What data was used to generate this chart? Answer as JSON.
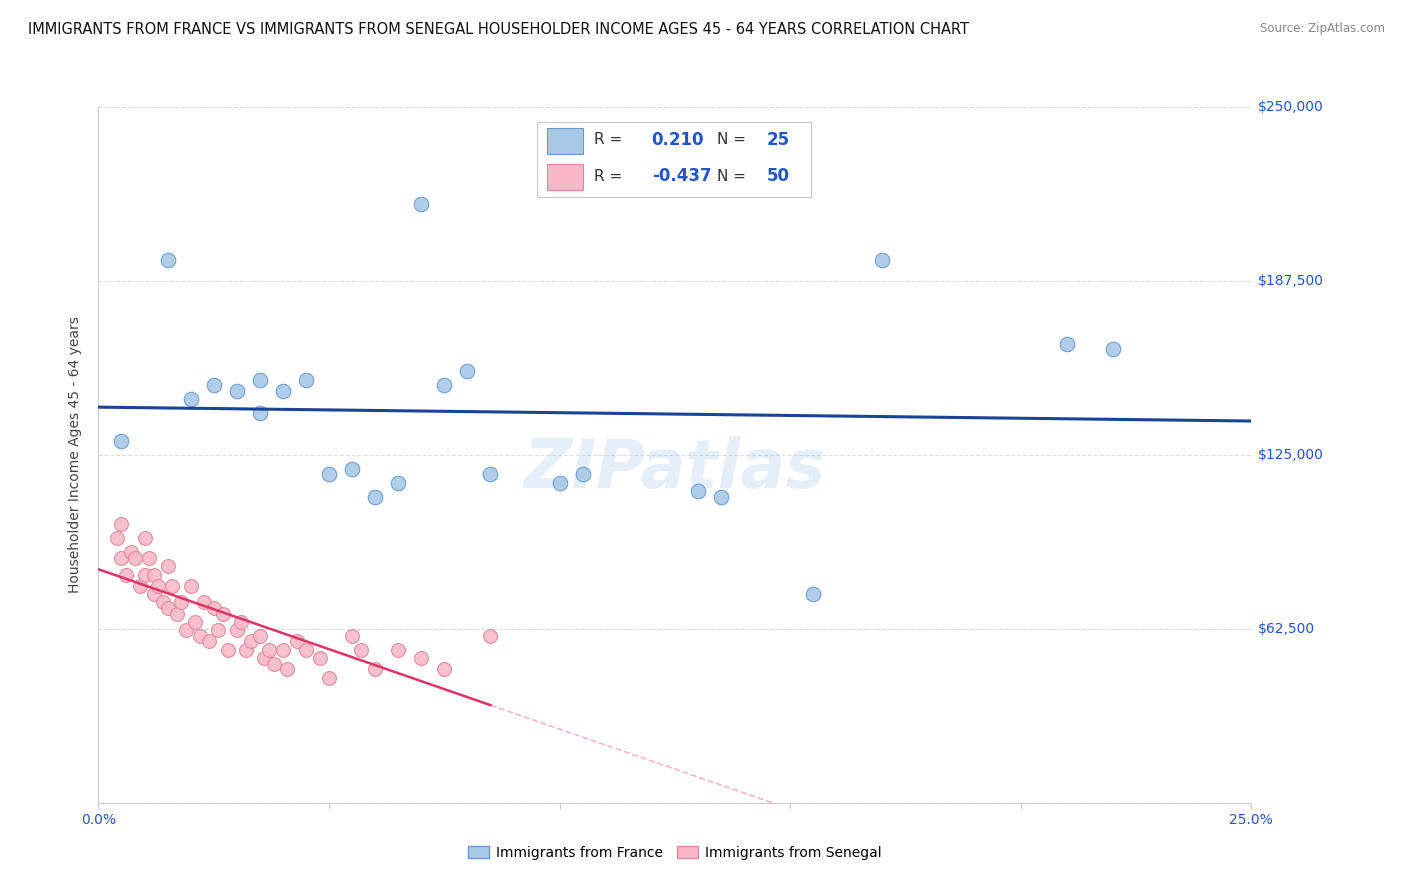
{
  "title": "IMMIGRANTS FROM FRANCE VS IMMIGRANTS FROM SENEGAL HOUSEHOLDER INCOME AGES 45 - 64 YEARS CORRELATION CHART",
  "source": "Source: ZipAtlas.com",
  "ylabel": "Householder Income Ages 45 - 64 years",
  "x_min": 0.0,
  "x_max": 0.25,
  "y_min": 0,
  "y_max": 250000,
  "y_ticks": [
    0,
    62500,
    125000,
    187500,
    250000
  ],
  "y_tick_labels": [
    "",
    "$62,500",
    "$125,000",
    "$187,500",
    "$250,000"
  ],
  "x_ticks": [
    0.0,
    0.05,
    0.1,
    0.15,
    0.2,
    0.25
  ],
  "x_tick_labels": [
    "0.0%",
    "",
    "",
    "",
    "",
    "25.0%"
  ],
  "france_color": "#a8c8e8",
  "france_edge_color": "#6699cc",
  "senegal_color": "#f8b8c8",
  "senegal_edge_color": "#dd8899",
  "trend_france_color": "#1a4494",
  "trend_senegal_color": "#dd3366",
  "R_france": "0.210",
  "N_france": "25",
  "R_senegal": "-0.437",
  "N_senegal": "50",
  "legend_label_france": "Immigrants from France",
  "legend_label_senegal": "Immigrants from Senegal",
  "watermark": "ZIPatlas",
  "france_x": [
    0.005,
    0.015,
    0.02,
    0.025,
    0.03,
    0.035,
    0.035,
    0.04,
    0.045,
    0.05,
    0.055,
    0.06,
    0.065,
    0.07,
    0.075,
    0.08,
    0.085,
    0.1,
    0.105,
    0.13,
    0.135,
    0.155,
    0.17,
    0.21,
    0.22
  ],
  "france_y": [
    130000,
    195000,
    145000,
    150000,
    148000,
    152000,
    140000,
    148000,
    152000,
    118000,
    120000,
    110000,
    115000,
    215000,
    150000,
    155000,
    118000,
    115000,
    118000,
    112000,
    110000,
    75000,
    195000,
    165000,
    163000
  ],
  "senegal_x": [
    0.004,
    0.005,
    0.005,
    0.006,
    0.007,
    0.008,
    0.009,
    0.01,
    0.01,
    0.011,
    0.012,
    0.012,
    0.013,
    0.014,
    0.015,
    0.015,
    0.016,
    0.017,
    0.018,
    0.019,
    0.02,
    0.021,
    0.022,
    0.023,
    0.024,
    0.025,
    0.026,
    0.027,
    0.028,
    0.03,
    0.031,
    0.032,
    0.033,
    0.035,
    0.036,
    0.037,
    0.038,
    0.04,
    0.041,
    0.043,
    0.045,
    0.048,
    0.05,
    0.055,
    0.057,
    0.06,
    0.065,
    0.07,
    0.075,
    0.085
  ],
  "senegal_y": [
    95000,
    100000,
    88000,
    82000,
    90000,
    88000,
    78000,
    82000,
    95000,
    88000,
    75000,
    82000,
    78000,
    72000,
    85000,
    70000,
    78000,
    68000,
    72000,
    62000,
    78000,
    65000,
    60000,
    72000,
    58000,
    70000,
    62000,
    68000,
    55000,
    62000,
    65000,
    55000,
    58000,
    60000,
    52000,
    55000,
    50000,
    55000,
    48000,
    58000,
    55000,
    52000,
    45000,
    60000,
    55000,
    48000,
    55000,
    52000,
    48000,
    60000
  ],
  "bg_color": "#ffffff",
  "grid_color": "#dddddd",
  "title_fontsize": 10.5,
  "axis_label_fontsize": 10,
  "tick_label_color": "#2255cc",
  "tick_label_fontsize": 10,
  "legend_color": "#2255cc"
}
